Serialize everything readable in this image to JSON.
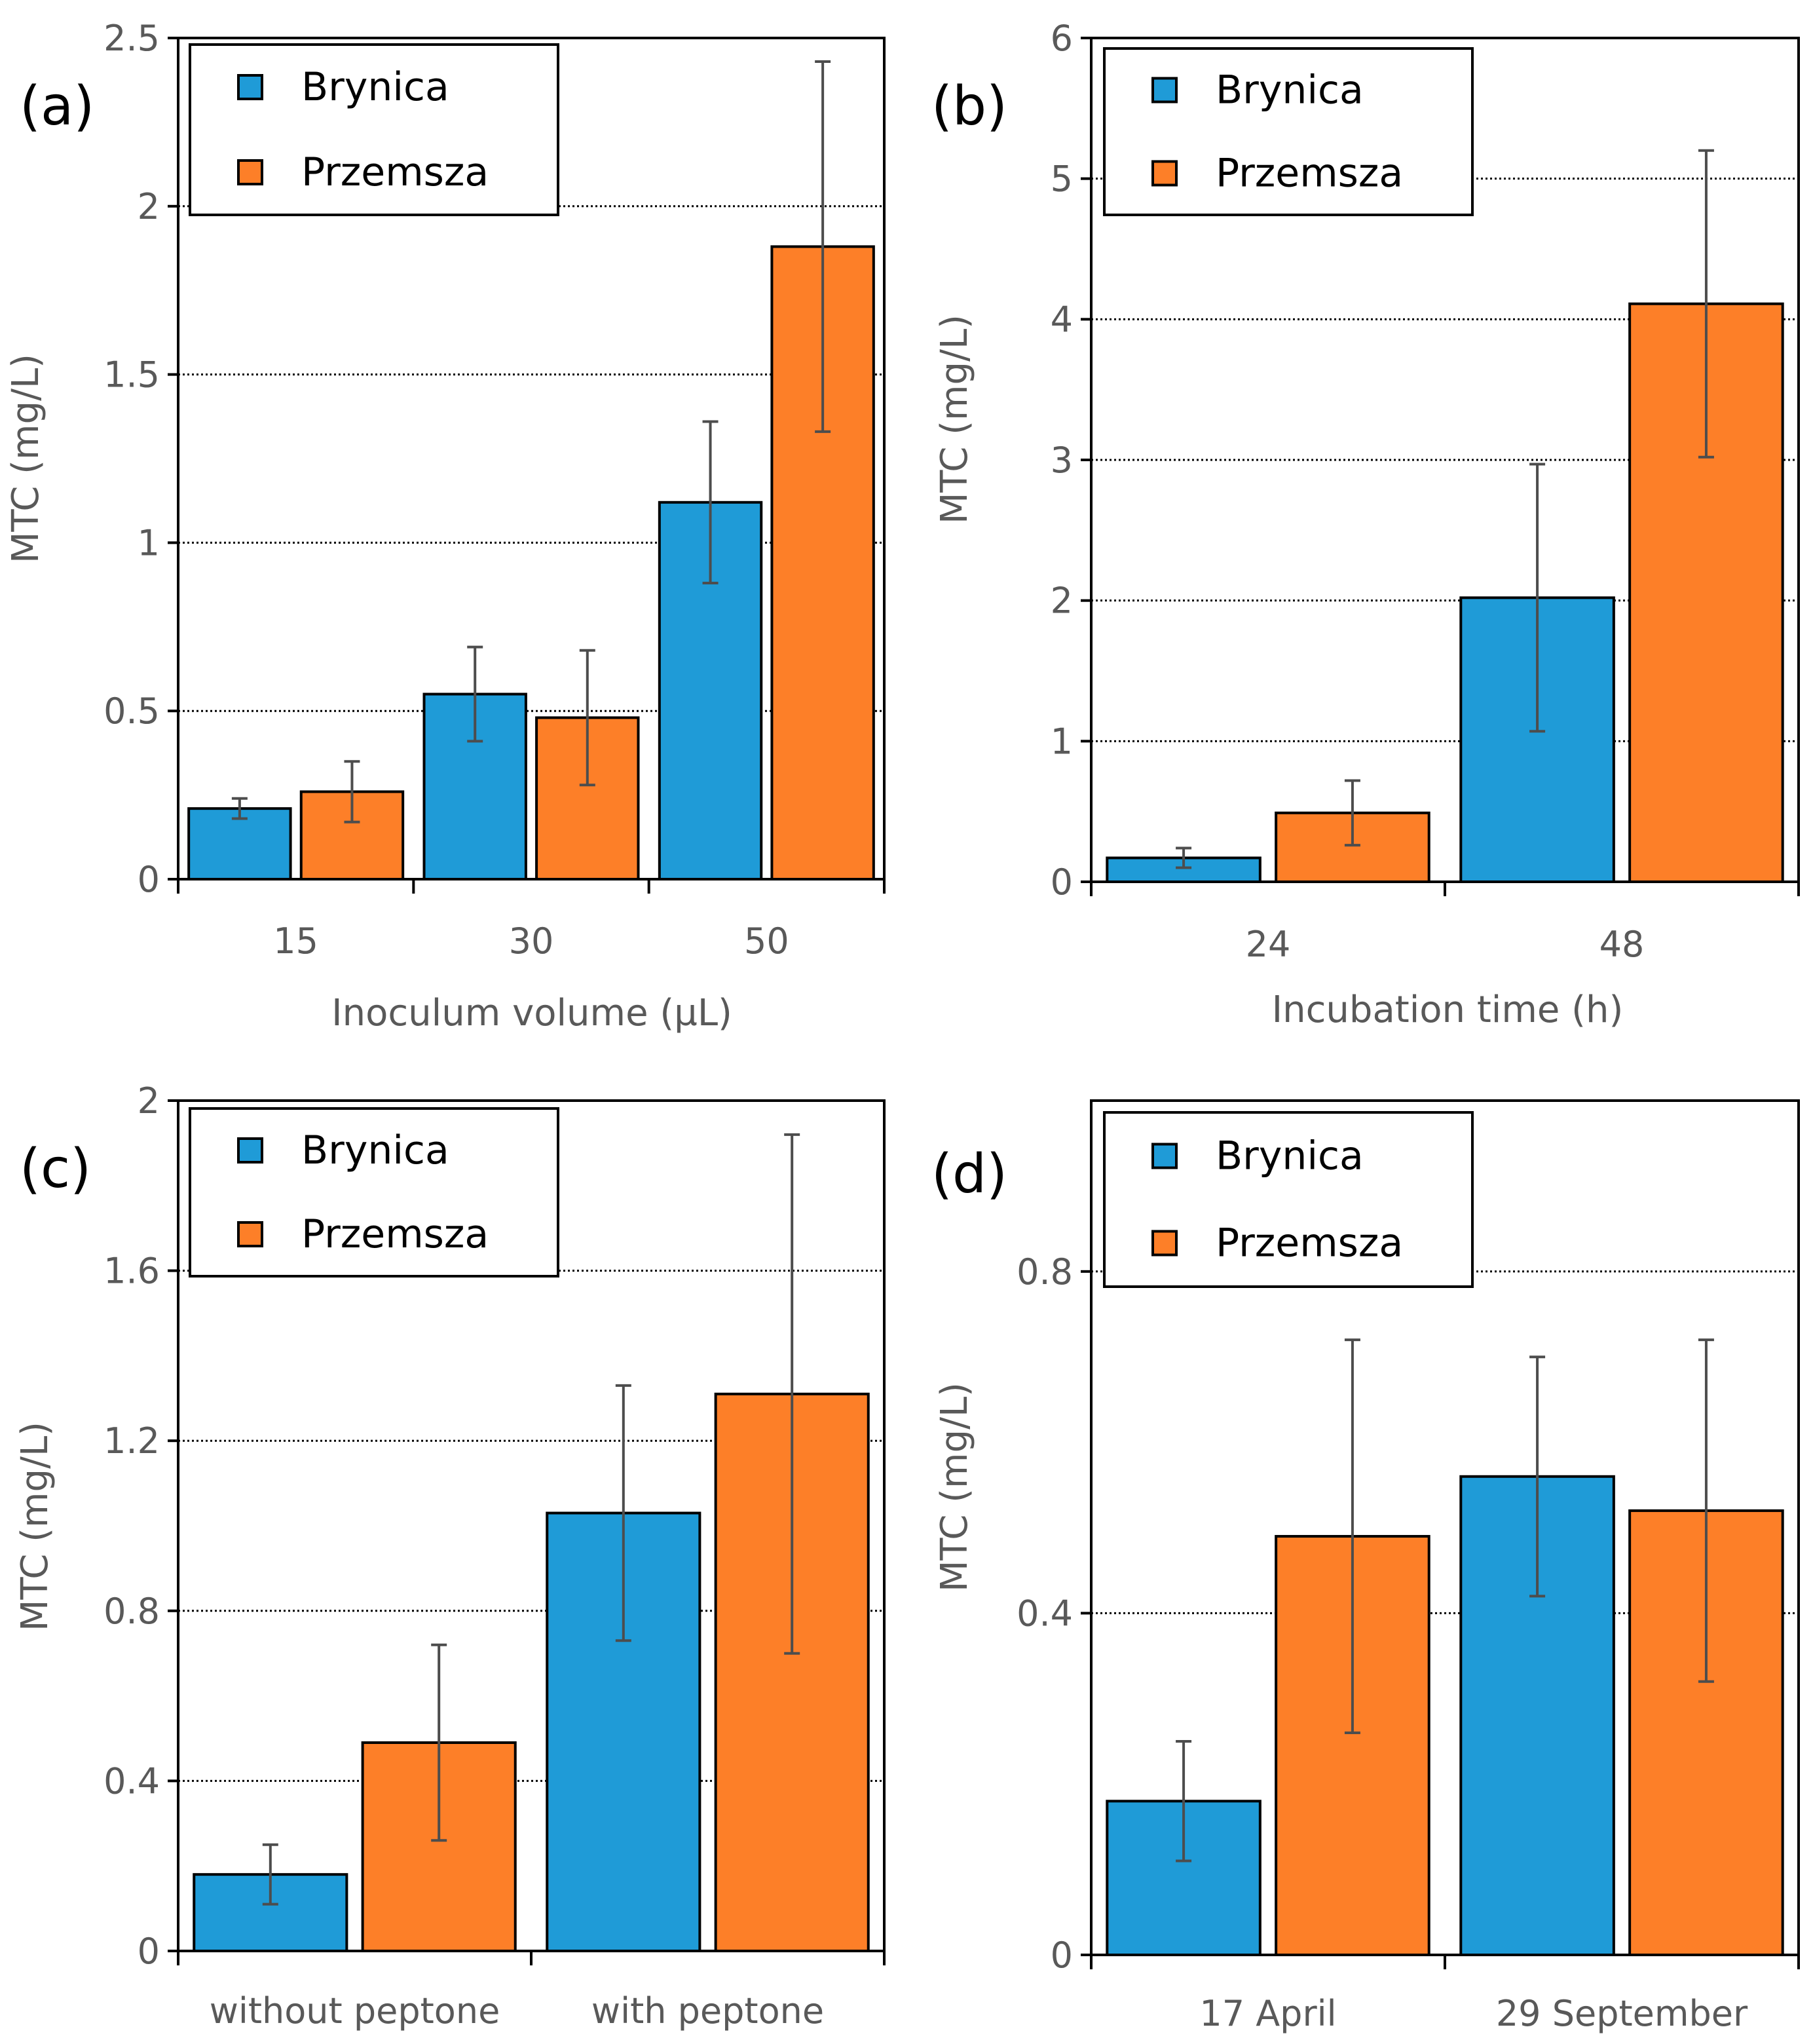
{
  "colors": {
    "brynica": "#1f9bd7",
    "przemsza": "#fd7f28",
    "error_bar": "#4d4d4d",
    "gridline": "#000000",
    "tick_label": "#595959"
  },
  "chart_data": [
    {
      "type": "bar",
      "panel_label": "(a)",
      "xlabel": "Inoculum volume (µL)",
      "ylabel": "MTC (mg/L)",
      "categories": [
        "15",
        "30",
        "50"
      ],
      "ylim": [
        0,
        2.5
      ],
      "yticks": [
        0,
        0.5,
        1,
        1.5,
        2,
        2.5
      ],
      "ytick_labels": [
        "0",
        "0.5",
        "1",
        "1.5",
        "2",
        "2.5"
      ],
      "grid_lines": [
        0.5,
        1,
        1.5,
        2
      ],
      "legend_position": "top-left",
      "series": [
        {
          "name": "Brynica",
          "values": [
            0.21,
            0.55,
            1.12
          ],
          "errors": [
            0.03,
            0.14,
            0.24
          ]
        },
        {
          "name": "Przemsza",
          "values": [
            0.26,
            0.48,
            1.88
          ],
          "errors": [
            0.09,
            0.2,
            0.55
          ]
        }
      ]
    },
    {
      "type": "bar",
      "panel_label": "(b)",
      "xlabel": "Incubation time (h)",
      "ylabel": "MTC (mg/L)",
      "categories": [
        "24",
        "48"
      ],
      "ylim": [
        0,
        6
      ],
      "yticks": [
        0,
        1,
        2,
        3,
        4,
        5,
        6
      ],
      "ytick_labels": [
        "0",
        "1",
        "2",
        "3",
        "4",
        "5",
        "6"
      ],
      "grid_lines": [
        1,
        2,
        3,
        4,
        5
      ],
      "legend_position": "top-left",
      "series": [
        {
          "name": "Brynica",
          "values": [
            0.17,
            2.02
          ],
          "errors": [
            0.07,
            0.95
          ]
        },
        {
          "name": "Przemsza",
          "values": [
            0.49,
            4.11
          ],
          "errors": [
            0.23,
            1.09
          ]
        }
      ]
    },
    {
      "type": "bar",
      "panel_label": "(c)",
      "xlabel": "",
      "ylabel": "MTC (mg/L)",
      "categories": [
        "without peptone",
        "with peptone"
      ],
      "ylim": [
        0,
        2
      ],
      "yticks": [
        0,
        0.4,
        0.8,
        1.2,
        1.6,
        2
      ],
      "ytick_labels": [
        "0",
        "0.4",
        "0.8",
        "1.2",
        "1.6",
        "2"
      ],
      "grid_lines": [
        0.4,
        0.8,
        1.2,
        1.6
      ],
      "legend_position": "top-left",
      "series": [
        {
          "name": "Brynica",
          "values": [
            0.18,
            1.03
          ],
          "errors": [
            0.07,
            0.3
          ]
        },
        {
          "name": "Przemsza",
          "values": [
            0.49,
            1.31
          ],
          "errors": [
            0.23,
            0.61
          ]
        }
      ]
    },
    {
      "type": "bar",
      "panel_label": "(d)",
      "xlabel": "",
      "ylabel": "MTC (mg/L)",
      "categories": [
        "17 April",
        "29 September"
      ],
      "ylim": [
        0,
        1.0
      ],
      "yticks": [
        0,
        0.4,
        0.8
      ],
      "ytick_labels": [
        "0",
        "0.4",
        "0.8"
      ],
      "grid_lines": [
        0.4,
        0.8
      ],
      "legend_position": "top-left",
      "series": [
        {
          "name": "Brynica",
          "values": [
            0.18,
            0.56
          ],
          "errors": [
            0.07,
            0.14
          ]
        },
        {
          "name": "Przemsza",
          "values": [
            0.49,
            0.52
          ],
          "errors": [
            0.23,
            0.2
          ]
        }
      ]
    }
  ]
}
